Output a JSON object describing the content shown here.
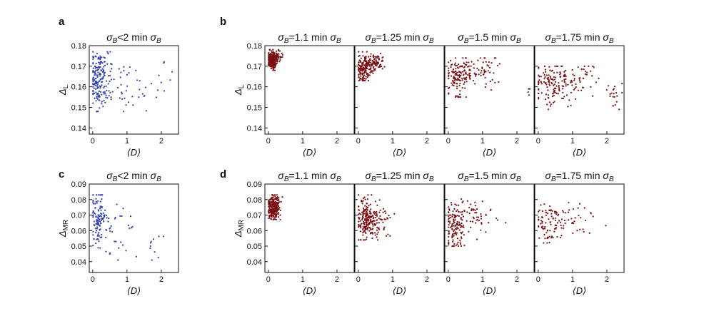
{
  "panel_letters": {
    "a": "a",
    "b": "b",
    "c": "c",
    "d": "d"
  },
  "colors": {
    "blue_points": "#2f3fb0",
    "red_points": "#7a0f12",
    "axis": "#111111"
  },
  "chart_data": [
    {
      "id": "a",
      "type": "scatter",
      "title": "σB<2 min σB",
      "xlabel": "⟨D⟩",
      "ylabel": "ΔL",
      "xlim": [
        -0.1,
        2.5
      ],
      "ylim": [
        0.137,
        0.18
      ],
      "xticks": [
        0,
        1,
        2
      ],
      "yticks": [
        0.14,
        0.15,
        0.16,
        0.17,
        0.18
      ],
      "ytick_labels": [
        "0.14",
        "0.15",
        "0.16",
        "0.17",
        "0.18"
      ],
      "grid": false,
      "points": {
        "color_key": "blue_points",
        "n": 230,
        "seed": 11,
        "y_range": [
          0.148,
          0.177
        ],
        "clusters": [
          {
            "cx": 0.2,
            "cy": 0.163,
            "sx": 0.15,
            "sy": 0.007,
            "w": 0.75
          },
          {
            "cx": 0.9,
            "cy": 0.162,
            "sx": 0.4,
            "sy": 0.007,
            "w": 0.2
          },
          {
            "cx": 1.9,
            "cy": 0.161,
            "sx": 0.25,
            "sy": 0.008,
            "w": 0.05
          }
        ]
      }
    },
    {
      "id": "b1",
      "type": "scatter",
      "title": "σB=1.1 min σB",
      "xlabel": "⟨D⟩",
      "ylabel": "ΔL",
      "xlim": [
        -0.1,
        2.5
      ],
      "ylim": [
        0.137,
        0.18
      ],
      "xticks": [
        0,
        1,
        2
      ],
      "yticks": [
        0.14,
        0.15,
        0.16,
        0.17,
        0.18
      ],
      "ytick_labels": [
        "0.14",
        "0.15",
        "0.16",
        "0.17",
        "0.18"
      ],
      "grid": false,
      "points": {
        "color_key": "red_points",
        "n": 260,
        "seed": 21,
        "y_range": [
          0.168,
          0.178
        ],
        "clusters": [
          {
            "cx": 0.12,
            "cy": 0.173,
            "sx": 0.07,
            "sy": 0.0022,
            "w": 0.85
          },
          {
            "cx": 0.3,
            "cy": 0.175,
            "sx": 0.08,
            "sy": 0.0015,
            "w": 0.15
          }
        ]
      }
    },
    {
      "id": "b2",
      "type": "scatter",
      "title": "σB=1.25 min σB",
      "xlabel": "⟨D⟩",
      "ylabel": "",
      "xlim": [
        -0.1,
        2.5
      ],
      "ylim": [
        0.137,
        0.18
      ],
      "xticks": [
        0,
        1,
        2
      ],
      "yticks": [
        0.14,
        0.15,
        0.16,
        0.17,
        0.18
      ],
      "ytick_labels": [],
      "grid": false,
      "points": {
        "color_key": "red_points",
        "n": 240,
        "seed": 31,
        "y_range": [
          0.163,
          0.177
        ],
        "clusters": [
          {
            "cx": 0.15,
            "cy": 0.169,
            "sx": 0.12,
            "sy": 0.0035,
            "w": 0.6
          },
          {
            "cx": 0.45,
            "cy": 0.172,
            "sx": 0.17,
            "sy": 0.002,
            "w": 0.4
          }
        ]
      }
    },
    {
      "id": "b3",
      "type": "scatter",
      "title": "σB=1.5 min σB",
      "xlabel": "⟨D⟩",
      "ylabel": "",
      "xlim": [
        -0.1,
        2.5
      ],
      "ylim": [
        0.137,
        0.18
      ],
      "xticks": [
        0,
        1,
        2
      ],
      "yticks": [
        0.14,
        0.15,
        0.16,
        0.17,
        0.18
      ],
      "ytick_labels": [],
      "grid": false,
      "points": {
        "color_key": "red_points",
        "n": 200,
        "seed": 41,
        "y_range": [
          0.155,
          0.174
        ],
        "clusters": [
          {
            "cx": 0.25,
            "cy": 0.165,
            "sx": 0.18,
            "sy": 0.005,
            "w": 0.55
          },
          {
            "cx": 0.8,
            "cy": 0.168,
            "sx": 0.35,
            "sy": 0.004,
            "w": 0.42
          },
          {
            "cx": 2.3,
            "cy": 0.158,
            "sx": 0.05,
            "sy": 0.001,
            "w": 0.03
          }
        ]
      }
    },
    {
      "id": "b4",
      "type": "scatter",
      "title": "σB=1.75 min σB",
      "xlabel": "⟨D⟩",
      "ylabel": "",
      "xlim": [
        -0.1,
        2.5
      ],
      "ylim": [
        0.137,
        0.18
      ],
      "xticks": [
        0,
        1,
        2
      ],
      "yticks": [
        0.14,
        0.15,
        0.16,
        0.17,
        0.18
      ],
      "ytick_labels": [],
      "grid": false,
      "points": {
        "color_key": "red_points",
        "n": 200,
        "seed": 51,
        "y_range": [
          0.149,
          0.17
        ],
        "clusters": [
          {
            "cx": 0.35,
            "cy": 0.16,
            "sx": 0.25,
            "sy": 0.005,
            "w": 0.55
          },
          {
            "cx": 1.1,
            "cy": 0.163,
            "sx": 0.45,
            "sy": 0.004,
            "w": 0.38
          },
          {
            "cx": 2.2,
            "cy": 0.155,
            "sx": 0.15,
            "sy": 0.003,
            "w": 0.07
          }
        ]
      }
    },
    {
      "id": "c",
      "type": "scatter",
      "title": "σB<2 min σB",
      "xlabel": "⟨D⟩",
      "ylabel": "ΔMR",
      "xlim": [
        -0.1,
        2.5
      ],
      "ylim": [
        0.033,
        0.09
      ],
      "xticks": [
        0,
        1,
        2
      ],
      "yticks": [
        0.04,
        0.05,
        0.06,
        0.07,
        0.08,
        0.09
      ],
      "ytick_labels": [
        "0.04",
        "0.05",
        "0.06",
        "0.07",
        "0.08",
        "0.09"
      ],
      "grid": false,
      "points": {
        "color_key": "blue_points",
        "n": 160,
        "seed": 61,
        "y_range": [
          0.041,
          0.083
        ],
        "clusters": [
          {
            "cx": 0.15,
            "cy": 0.068,
            "sx": 0.12,
            "sy": 0.01,
            "w": 0.7
          },
          {
            "cx": 0.6,
            "cy": 0.06,
            "sx": 0.3,
            "sy": 0.008,
            "w": 0.25
          },
          {
            "cx": 1.8,
            "cy": 0.05,
            "sx": 0.2,
            "sy": 0.006,
            "w": 0.05
          }
        ]
      }
    },
    {
      "id": "d1",
      "type": "scatter",
      "title": "σB=1.1 min σB",
      "xlabel": "⟨D⟩",
      "ylabel": "ΔMR",
      "xlim": [
        -0.1,
        2.5
      ],
      "ylim": [
        0.033,
        0.09
      ],
      "xticks": [
        0,
        1,
        2
      ],
      "yticks": [
        0.04,
        0.05,
        0.06,
        0.07,
        0.08,
        0.09
      ],
      "ytick_labels": [
        "0.04",
        "0.05",
        "0.06",
        "0.07",
        "0.08",
        "0.09"
      ],
      "grid": false,
      "points": {
        "color_key": "red_points",
        "n": 260,
        "seed": 71,
        "y_range": [
          0.067,
          0.083
        ],
        "clusters": [
          {
            "cx": 0.15,
            "cy": 0.075,
            "sx": 0.09,
            "sy": 0.004,
            "w": 1.0
          }
        ]
      }
    },
    {
      "id": "d2",
      "type": "scatter",
      "title": "σB=1.25 min σB",
      "xlabel": "⟨D⟩",
      "ylabel": "",
      "xlim": [
        -0.1,
        2.5
      ],
      "ylim": [
        0.033,
        0.09
      ],
      "xticks": [
        0,
        1,
        2
      ],
      "yticks": [
        0.04,
        0.05,
        0.06,
        0.07,
        0.08,
        0.09
      ],
      "ytick_labels": [],
      "grid": false,
      "points": {
        "color_key": "red_points",
        "n": 240,
        "seed": 81,
        "y_range": [
          0.054,
          0.083
        ],
        "clusters": [
          {
            "cx": 0.2,
            "cy": 0.067,
            "sx": 0.15,
            "sy": 0.007,
            "w": 0.65
          },
          {
            "cx": 0.55,
            "cy": 0.066,
            "sx": 0.2,
            "sy": 0.006,
            "w": 0.35
          }
        ]
      }
    },
    {
      "id": "d3",
      "type": "scatter",
      "title": "σB=1.5 min σB",
      "xlabel": "⟨D⟩",
      "ylabel": "",
      "xlim": [
        -0.1,
        2.5
      ],
      "ylim": [
        0.033,
        0.09
      ],
      "xticks": [
        0,
        1,
        2
      ],
      "yticks": [
        0.04,
        0.05,
        0.06,
        0.07,
        0.08,
        0.09
      ],
      "ytick_labels": [],
      "grid": false,
      "points": {
        "color_key": "red_points",
        "n": 180,
        "seed": 91,
        "y_range": [
          0.05,
          0.082
        ],
        "clusters": [
          {
            "cx": 0.2,
            "cy": 0.064,
            "sx": 0.14,
            "sy": 0.008,
            "w": 0.6
          },
          {
            "cx": 0.75,
            "cy": 0.067,
            "sx": 0.35,
            "sy": 0.006,
            "w": 0.4
          }
        ]
      }
    },
    {
      "id": "d4",
      "type": "scatter",
      "title": "σB=1.75 min σB",
      "xlabel": "⟨D⟩",
      "ylabel": "",
      "xlim": [
        -0.1,
        2.5
      ],
      "ylim": [
        0.033,
        0.09
      ],
      "xticks": [
        0,
        1,
        2
      ],
      "yticks": [
        0.04,
        0.05,
        0.06,
        0.07,
        0.08,
        0.09
      ],
      "ytick_labels": [],
      "grid": false,
      "points": {
        "color_key": "red_points",
        "n": 120,
        "seed": 101,
        "y_range": [
          0.052,
          0.081
        ],
        "clusters": [
          {
            "cx": 0.3,
            "cy": 0.066,
            "sx": 0.2,
            "sy": 0.007,
            "w": 0.6
          },
          {
            "cx": 1.0,
            "cy": 0.067,
            "sx": 0.35,
            "sy": 0.005,
            "w": 0.4
          }
        ]
      }
    }
  ]
}
